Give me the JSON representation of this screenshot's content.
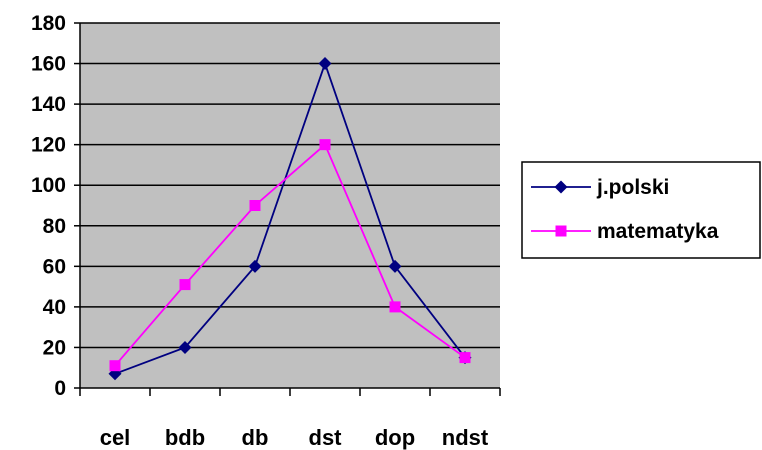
{
  "chart_data": {
    "type": "line",
    "categories": [
      "cel",
      "bdb",
      "db",
      "dst",
      "dop",
      "ndst"
    ],
    "series": [
      {
        "name": "j.polski",
        "values": [
          7,
          20,
          60,
          160,
          60,
          15
        ],
        "color": "#000080",
        "marker": "diamond"
      },
      {
        "name": "matematyka",
        "values": [
          11,
          51,
          90,
          120,
          40,
          15
        ],
        "color": "#ff00ff",
        "marker": "square"
      }
    ],
    "ylim": [
      0,
      180
    ],
    "yticks": [
      0,
      20,
      40,
      60,
      80,
      100,
      120,
      140,
      160,
      180
    ],
    "grid": true,
    "plot_background": "#c0c0c0",
    "legend_position": "right"
  }
}
